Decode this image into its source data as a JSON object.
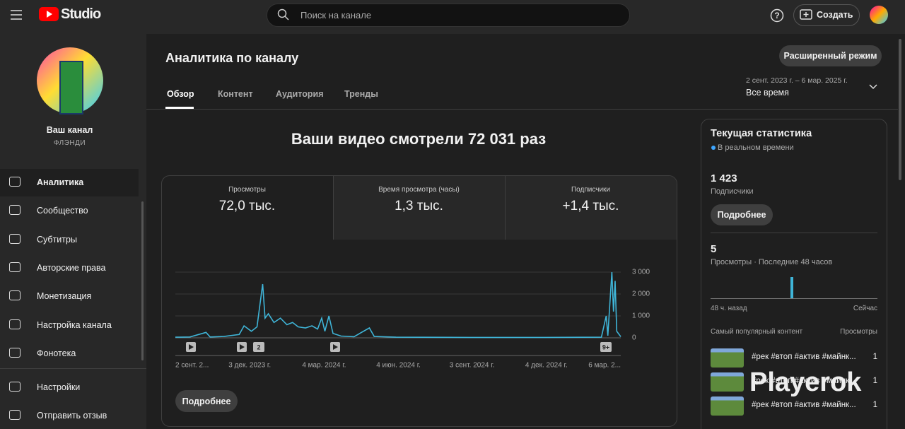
{
  "header": {
    "logo": "Studio",
    "search_placeholder": "Поиск на канале",
    "create_button": "Создать"
  },
  "sidebar": {
    "channel_title": "Ваш канал",
    "channel_name": "ФЛЭНДИ",
    "items": [
      "Аналитика",
      "Сообщество",
      "Субтитры",
      "Авторские права",
      "Монетизация",
      "Настройка канала",
      "Фонотека"
    ],
    "bottom_items": [
      "Настройки",
      "Отправить отзыв"
    ]
  },
  "page": {
    "title": "Аналитика по каналу",
    "tabs": [
      "Обзор",
      "Контент",
      "Аудитория",
      "Тренды"
    ],
    "advanced_button": "Расширенный режим",
    "date_range": "2 сент. 2023 г. – 6 мар. 2025 г.",
    "period": "Все время",
    "headline": "Ваши видео смотрели 72 031 раз",
    "metrics": [
      {
        "label": "Просмотры",
        "value": "72,0 тыс."
      },
      {
        "label": "Время просмотра (часы)",
        "value": "1,3 тыс."
      },
      {
        "label": "Подписчики",
        "value": "+1,4 тыс."
      }
    ],
    "more_button": "Подробнее"
  },
  "chart_data": {
    "type": "line",
    "color": "#3fb5d8",
    "x": [
      "2023-09-02",
      "2023-09-20",
      "2023-10-10",
      "2023-10-15",
      "2023-11-01",
      "2023-11-20",
      "2023-11-26",
      "2023-12-05",
      "2023-12-12",
      "2023-12-19",
      "2023-12-22",
      "2023-12-26",
      "2024-01-02",
      "2024-01-10",
      "2024-01-18",
      "2024-01-25",
      "2024-02-01",
      "2024-02-10",
      "2024-02-18",
      "2024-02-25",
      "2024-03-01",
      "2024-03-05",
      "2024-03-10",
      "2024-03-15",
      "2024-03-25",
      "2024-04-10",
      "2024-04-29",
      "2024-05-05",
      "2024-06-01",
      "2024-09-01",
      "2024-12-01",
      "2025-02-10",
      "2025-02-16",
      "2025-02-18",
      "2025-02-23",
      "2025-02-25",
      "2025-02-27",
      "2025-03-01",
      "2025-03-06"
    ],
    "values": [
      30,
      40,
      250,
      40,
      60,
      150,
      550,
      300,
      500,
      2450,
      900,
      1100,
      700,
      900,
      600,
      700,
      500,
      450,
      550,
      400,
      900,
      300,
      1000,
      200,
      80,
      50,
      450,
      60,
      30,
      20,
      20,
      30,
      1000,
      100,
      3000,
      1200,
      2600,
      300,
      50
    ],
    "xlim": [
      "2023-09-02",
      "2025-03-06"
    ],
    "xticks": [
      {
        "value": "2023-09-02",
        "label": "2 сент. 2..."
      },
      {
        "value": "2023-12-03",
        "label": "3 дек. 2023 г."
      },
      {
        "value": "2024-03-04",
        "label": "4 мар. 2024 г."
      },
      {
        "value": "2024-06-04",
        "label": "4 июн. 2024 г."
      },
      {
        "value": "2024-09-03",
        "label": "3 сент. 2024 г."
      },
      {
        "value": "2024-12-04",
        "label": "4 дек. 2024 г."
      },
      {
        "value": "2025-03-06",
        "label": "6 мар. 2..."
      }
    ],
    "ylim": [
      0,
      3000
    ],
    "yticks": [
      0,
      {
        "value": 1000,
        "label": "1 000"
      },
      {
        "value": 2000,
        "label": "2 000"
      },
      {
        "value": 3000,
        "label": "3 000"
      }
    ],
    "grid": true,
    "annotations": [
      "2",
      "9+"
    ]
  },
  "realtime": {
    "title": "Текущая статистика",
    "live": "В реальном времени",
    "subscribers": "1 423",
    "subscribers_label": "Подписчики",
    "more_button": "Подробнее",
    "views": "5",
    "views_label": "Просмотры · Последние 48 часов",
    "from": "48 ч. назад",
    "to": "Сейчас",
    "top_title": "Самый популярный контент",
    "top_col": "Просмотры",
    "top": [
      {
        "title": "#рек #втоп #актив #майнк...",
        "views": "1"
      },
      {
        "title": "#рек #втоп #актив #майнк...",
        "views": "1"
      },
      {
        "title": "#рек #втоп #актив #майнк...",
        "views": "1"
      }
    ]
  },
  "watermark": "Playerok"
}
